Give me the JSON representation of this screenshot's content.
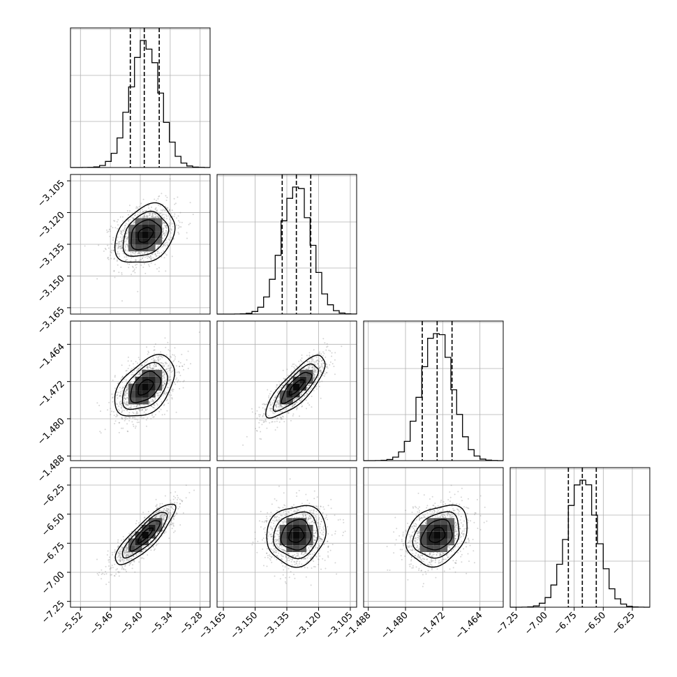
{
  "chart_data": {
    "type": "corner",
    "grid": true,
    "parameters": [
      {
        "ticks": [
          -5.52,
          -5.46,
          -5.4,
          -5.34,
          -5.28
        ],
        "tick_labels": [
          "−5.52",
          "−5.46",
          "−5.40",
          "−5.34",
          "−5.28"
        ],
        "range": [
          -5.54,
          -5.26
        ],
        "mean": -5.39,
        "sd": 0.03,
        "quantiles": [
          -5.42,
          -5.392,
          -5.362
        ]
      },
      {
        "ticks": [
          -3.165,
          -3.15,
          -3.135,
          -3.12,
          -3.105
        ],
        "tick_labels": [
          "−3.165",
          "−3.150",
          "−3.135",
          "−3.120",
          "−3.105"
        ],
        "range": [
          -3.168,
          -3.102
        ],
        "mean": -3.1305,
        "sd": 0.007,
        "quantiles": [
          -3.1372,
          -3.1305,
          -3.1237
        ]
      },
      {
        "ticks": [
          -1.488,
          -1.48,
          -1.472,
          -1.464
        ],
        "tick_labels": [
          "−1.488",
          "−1.480",
          "−1.472",
          "−1.464"
        ],
        "range": [
          -1.489,
          -1.459
        ],
        "mean": -1.4732,
        "sd": 0.0033,
        "quantiles": [
          -1.4764,
          -1.4732,
          -1.47
        ]
      },
      {
        "ticks": [
          -7.25,
          -7.0,
          -6.75,
          -6.5,
          -6.25
        ],
        "tick_labels": [
          "−7.25",
          "−7.00",
          "−6.75",
          "−6.50",
          "−6.25"
        ],
        "range": [
          -7.3,
          -6.1
        ],
        "mean": -6.68,
        "sd": 0.13,
        "quantiles": [
          -6.8,
          -6.68,
          -6.56
        ]
      }
    ],
    "correlations": {
      "1-0": 0.3,
      "2-0": 0.45,
      "2-1": 0.8,
      "3-0": 0.85,
      "3-1": 0.1,
      "3-2": 0.25
    },
    "line_color": "#000000",
    "sample_color": "#888888"
  }
}
